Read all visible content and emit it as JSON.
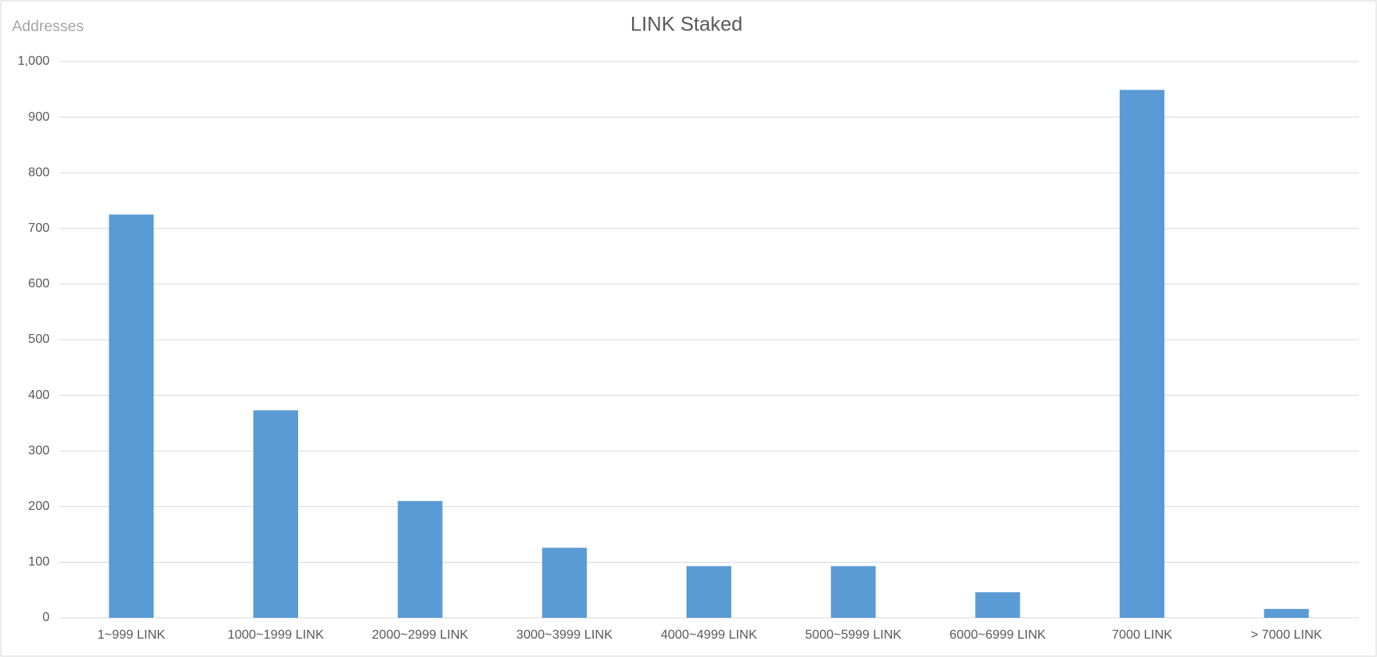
{
  "chart_data": {
    "type": "bar",
    "title": "LINK Staked",
    "y_label": "Addresses",
    "categories": [
      "1~999 LINK",
      "1000~1999 LINK",
      "2000~2999 LINK",
      "3000~3999 LINK",
      "4000~4999 LINK",
      "5000~5999 LINK",
      "6000~6999 LINK",
      "7000 LINK",
      "> 7000 LINK"
    ],
    "values": [
      725,
      373,
      210,
      126,
      93,
      93,
      46,
      949,
      16
    ],
    "color": "#5b9bd5",
    "ylim": [
      0,
      1000
    ],
    "yticks": [
      0,
      100,
      200,
      300,
      400,
      500,
      600,
      700,
      800,
      900,
      {
        "value": 1000,
        "label": "1,000"
      }
    ],
    "grid": true
  }
}
